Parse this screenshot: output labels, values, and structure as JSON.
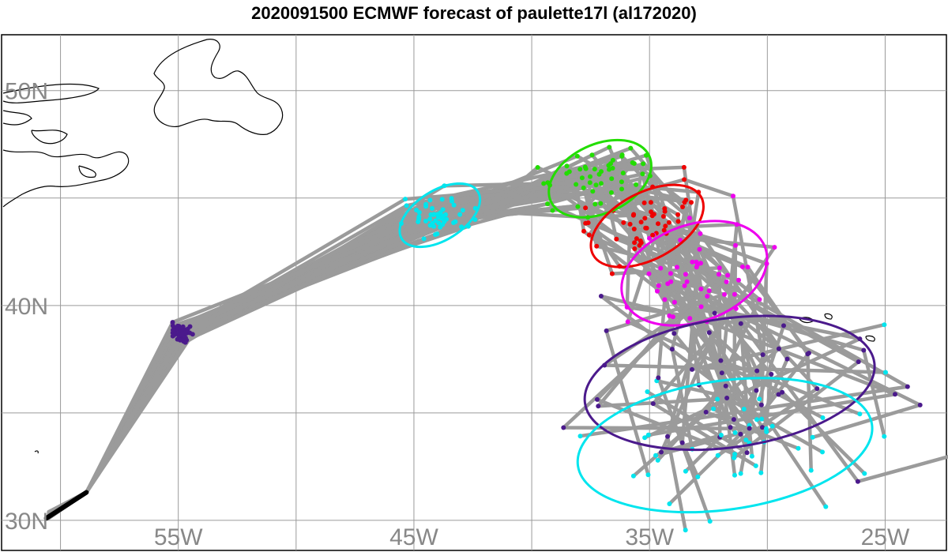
{
  "title": "2020091500 ECMWF forecast of paulette17l (al172020)",
  "map": {
    "lon_range": [
      -62.5,
      -22.4
    ],
    "lat_range": [
      28.6,
      52.6
    ],
    "grid_lons": [
      -60,
      -55,
      -50,
      -45,
      -40,
      -35,
      -30,
      -25
    ],
    "grid_lats": [
      30,
      35,
      40,
      45,
      50
    ],
    "lon_labels": [
      {
        "value": -55,
        "text": "55W"
      },
      {
        "value": -45,
        "text": "45W"
      },
      {
        "value": -35,
        "text": "35W"
      },
      {
        "value": -25,
        "text": "25W"
      }
    ],
    "lat_labels": [
      {
        "value": 50,
        "text": "50N"
      },
      {
        "value": 40,
        "text": "40N"
      },
      {
        "value": 30,
        "text": "30N"
      }
    ],
    "colors": {
      "grid": "#9a9a9a",
      "track": "#9b9b9b",
      "coast": "#000000",
      "observed": "#000000",
      "day1": "#4b1a8c",
      "day2": "#00e5ee",
      "day3": "#22dd00",
      "day4": "#ee0000",
      "day5": "#ee00ee",
      "day6": "#4b1a8c",
      "day7": "#00e5ee"
    },
    "observed_track": [
      [
        -60.6,
        30.1
      ],
      [
        -58.9,
        31.3
      ]
    ],
    "spread_ellipses": [
      {
        "color": "day2",
        "center": [
          -43.9,
          44.2
        ],
        "radii": [
          1.9,
          1.15
        ],
        "tilt_deg": 32
      },
      {
        "color": "day3",
        "center": [
          -37.1,
          45.9
        ],
        "radii": [
          2.3,
          1.6
        ],
        "tilt_deg": 25
      },
      {
        "color": "day4",
        "center": [
          -35.1,
          43.7
        ],
        "radii": [
          2.6,
          1.55
        ],
        "tilt_deg": 28
      },
      {
        "color": "day5",
        "center": [
          -33.1,
          41.5
        ],
        "radii": [
          3.2,
          2.25
        ],
        "tilt_deg": 20
      },
      {
        "color": "day6",
        "center": [
          -31.6,
          36.4
        ],
        "radii": [
          6.2,
          3.0
        ],
        "tilt_deg": 8
      },
      {
        "color": "day7",
        "center": [
          -31.8,
          33.5
        ],
        "radii": [
          6.3,
          3.0
        ],
        "tilt_deg": 8
      }
    ]
  }
}
